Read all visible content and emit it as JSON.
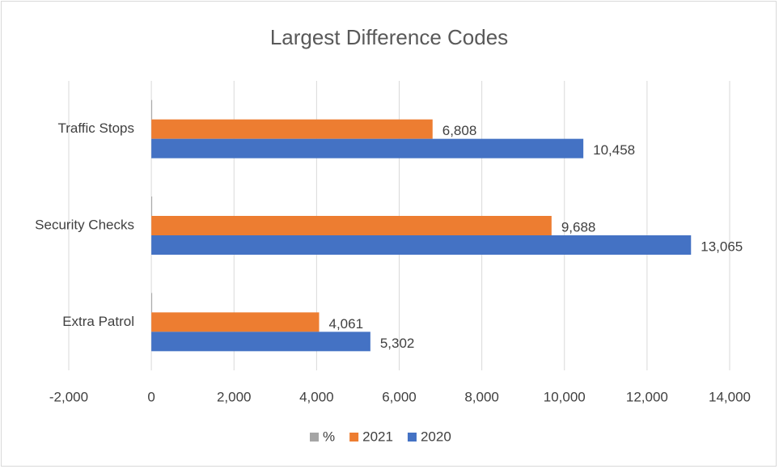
{
  "chart_data": {
    "type": "hbar",
    "title": "Largest Difference Codes",
    "categories": [
      "Extra Patrol",
      "Security Checks",
      "Traffic Stops"
    ],
    "series": [
      {
        "name": "%",
        "color": "#a5a5a5",
        "values": [
          -0.23,
          -0.26,
          -0.35
        ]
      },
      {
        "name": "2021",
        "color": "#ed7d31",
        "values": [
          4061,
          9688,
          6808
        ],
        "value_labels": [
          "4,061",
          "9,688",
          "6,808"
        ]
      },
      {
        "name": "2020",
        "color": "#4472c4",
        "values": [
          5302,
          13065,
          10458
        ],
        "value_labels": [
          "5,302",
          "13,065",
          "10,458"
        ]
      }
    ],
    "xlim": [
      -2000,
      14000
    ],
    "xticks": [
      {
        "value": -2000,
        "label": "-2,000"
      },
      0,
      {
        "value": 2000,
        "label": "2,000"
      },
      {
        "value": 4000,
        "label": "4,000"
      },
      {
        "value": 6000,
        "label": "6,000"
      },
      {
        "value": 8000,
        "label": "8,000"
      },
      {
        "value": 10000,
        "label": "10,000"
      },
      {
        "value": 12000,
        "label": "12,000"
      },
      {
        "value": 14000,
        "label": "14,000"
      }
    ],
    "grid": true,
    "legend": "bottom"
  }
}
